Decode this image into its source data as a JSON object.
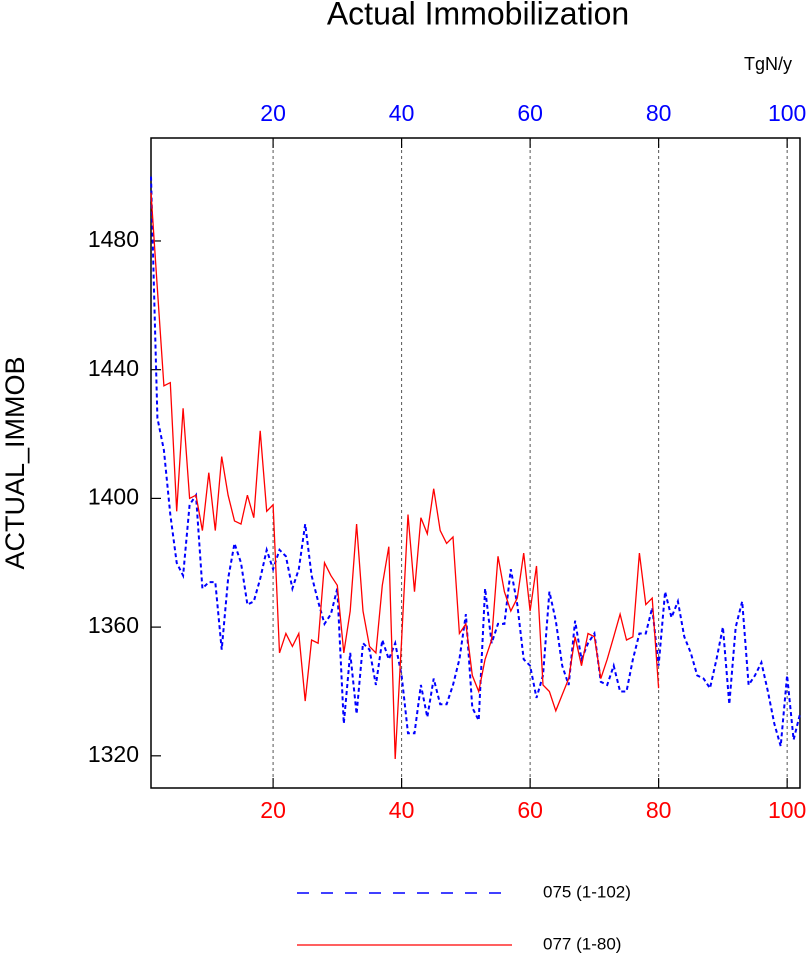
{
  "chart_data": {
    "type": "line",
    "title": "Actual Immobilization",
    "y_label": "ACTUAL_IMMOB",
    "x2_label": "TgN/y",
    "xlim": [
      1,
      102
    ],
    "ylim": [
      1310,
      1512
    ],
    "xticks": [
      20,
      40,
      60,
      80,
      100
    ],
    "xtick_color": "#ff0000",
    "x2ticks": [
      20,
      40,
      60,
      80,
      100
    ],
    "x2tick_color": "#0000ff",
    "yticks": [
      1320,
      1360,
      1400,
      1440,
      1480
    ],
    "grid": "x",
    "series": [
      {
        "name": "075 (1-102)",
        "color": "#0000ff",
        "dash": true,
        "x": [
          1,
          2,
          3,
          4,
          5,
          6,
          7,
          8,
          9,
          10,
          11,
          12,
          13,
          14,
          15,
          16,
          17,
          18,
          19,
          20,
          21,
          22,
          23,
          24,
          25,
          26,
          27,
          28,
          29,
          30,
          31,
          32,
          33,
          34,
          35,
          36,
          37,
          38,
          39,
          40,
          41,
          42,
          43,
          44,
          45,
          46,
          47,
          48,
          49,
          50,
          51,
          52,
          53,
          54,
          55,
          56,
          57,
          58,
          59,
          60,
          61,
          62,
          63,
          64,
          65,
          66,
          67,
          68,
          69,
          70,
          71,
          72,
          73,
          74,
          75,
          76,
          77,
          78,
          79,
          80,
          81,
          82,
          83,
          84,
          85,
          86,
          87,
          88,
          89,
          90,
          91,
          92,
          93,
          94,
          95,
          96,
          97,
          98,
          99,
          100,
          101,
          102
        ],
        "values": [
          1500,
          1425,
          1415,
          1395,
          1380,
          1376,
          1398,
          1401,
          1372,
          1374,
          1374,
          1353,
          1375,
          1386,
          1380,
          1367,
          1368,
          1375,
          1384,
          1378,
          1384,
          1382,
          1372,
          1378,
          1392,
          1376,
          1368,
          1361,
          1364,
          1372,
          1330,
          1352,
          1333,
          1355,
          1353,
          1342,
          1356,
          1350,
          1355,
          1345,
          1327,
          1327,
          1342,
          1332,
          1344,
          1336,
          1336,
          1342,
          1350,
          1364,
          1335,
          1331,
          1372,
          1355,
          1361,
          1361,
          1378,
          1367,
          1350,
          1348,
          1338,
          1345,
          1371,
          1362,
          1348,
          1342,
          1362,
          1350,
          1355,
          1358,
          1343,
          1342,
          1348,
          1340,
          1340,
          1350,
          1358,
          1358,
          1366,
          1348,
          1371,
          1363,
          1368,
          1357,
          1352,
          1345,
          1344,
          1341,
          1350,
          1360,
          1336,
          1360,
          1368,
          1342,
          1345,
          1349,
          1340,
          1330,
          1323,
          1345,
          1325,
          1333
        ]
      },
      {
        "name": "077 (1-80)",
        "color": "#ff0000",
        "dash": false,
        "x": [
          1,
          2,
          3,
          4,
          5,
          6,
          7,
          8,
          9,
          10,
          11,
          12,
          13,
          14,
          15,
          16,
          17,
          18,
          19,
          20,
          21,
          22,
          23,
          24,
          25,
          26,
          27,
          28,
          29,
          30,
          31,
          32,
          33,
          34,
          35,
          36,
          37,
          38,
          39,
          40,
          41,
          42,
          43,
          44,
          45,
          46,
          47,
          48,
          49,
          50,
          51,
          52,
          53,
          54,
          55,
          56,
          57,
          58,
          59,
          60,
          61,
          62,
          63,
          64,
          65,
          66,
          67,
          68,
          69,
          70,
          71,
          72,
          73,
          74,
          75,
          76,
          77,
          78,
          79,
          80
        ],
        "values": [
          1495,
          1465,
          1435,
          1436,
          1396,
          1428,
          1400,
          1401,
          1390,
          1408,
          1390,
          1413,
          1401,
          1393,
          1392,
          1401,
          1394,
          1421,
          1396,
          1398,
          1352,
          1358,
          1354,
          1358,
          1337,
          1356,
          1355,
          1380,
          1376,
          1373,
          1352,
          1365,
          1392,
          1365,
          1354,
          1352,
          1373,
          1385,
          1319,
          1356,
          1395,
          1371,
          1394,
          1389,
          1403,
          1390,
          1386,
          1388,
          1358,
          1361,
          1345,
          1340,
          1350,
          1356,
          1382,
          1371,
          1365,
          1369,
          1383,
          1365,
          1379,
          1342,
          1340,
          1334,
          1339,
          1344,
          1357,
          1348,
          1358,
          1357,
          1344,
          1350,
          1357,
          1364,
          1356,
          1357,
          1383,
          1367,
          1369,
          1341
        ]
      }
    ]
  }
}
